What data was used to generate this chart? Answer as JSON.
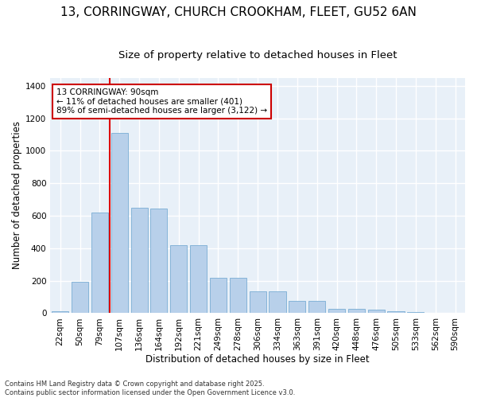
{
  "title_line1": "13, CORRINGWAY, CHURCH CROOKHAM, FLEET, GU52 6AN",
  "title_line2": "Size of property relative to detached houses in Fleet",
  "xlabel": "Distribution of detached houses by size in Fleet",
  "ylabel": "Number of detached properties",
  "categories": [
    "22sqm",
    "50sqm",
    "79sqm",
    "107sqm",
    "136sqm",
    "164sqm",
    "192sqm",
    "221sqm",
    "249sqm",
    "278sqm",
    "306sqm",
    "334sqm",
    "363sqm",
    "391sqm",
    "420sqm",
    "448sqm",
    "476sqm",
    "505sqm",
    "533sqm",
    "562sqm",
    "590sqm"
  ],
  "values": [
    10,
    195,
    620,
    1110,
    650,
    645,
    420,
    420,
    215,
    215,
    135,
    135,
    75,
    75,
    25,
    25,
    20,
    10,
    8,
    3,
    3
  ],
  "bar_color": "#b8d0ea",
  "bar_edge_color": "#7aadd4",
  "bg_color": "#e8f0f8",
  "grid_color": "#ffffff",
  "vline_color": "#dd0000",
  "annotation_text": "13 CORRINGWAY: 90sqm\n← 11% of detached houses are smaller (401)\n89% of semi-detached houses are larger (3,122) →",
  "annotation_box_color": "#ffffff",
  "annotation_box_edge": "#cc0000",
  "ylim": [
    0,
    1450
  ],
  "yticks": [
    0,
    200,
    400,
    600,
    800,
    1000,
    1200,
    1400
  ],
  "footnote": "Contains HM Land Registry data © Crown copyright and database right 2025.\nContains public sector information licensed under the Open Government Licence v3.0.",
  "title_fontsize": 11,
  "subtitle_fontsize": 9.5,
  "axis_label_fontsize": 8.5,
  "tick_fontsize": 7.5,
  "annot_fontsize": 7.5
}
